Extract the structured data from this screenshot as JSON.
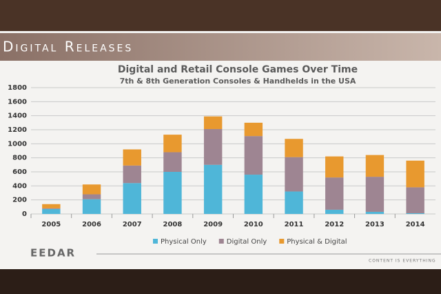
{
  "header": {
    "title": "Digital Releases"
  },
  "chart_data": {
    "type": "stacked_bar",
    "title": "Digital and Retail Console Games Over Time",
    "subtitle": "7th & 8th Generation Consoles & Handhelds in the USA",
    "categories": [
      "2005",
      "2006",
      "2007",
      "2008",
      "2009",
      "2010",
      "2011",
      "2012",
      "2013",
      "2014"
    ],
    "series": [
      {
        "name": "Physical Only",
        "color": "#4fb6d8",
        "values": [
          70,
          210,
          440,
          600,
          700,
          560,
          320,
          60,
          30,
          10
        ]
      },
      {
        "name": "Digital Only",
        "color": "#9e8592",
        "values": [
          10,
          70,
          250,
          280,
          510,
          550,
          490,
          460,
          500,
          370
        ]
      },
      {
        "name": "Physical & Digital",
        "color": "#e8992f",
        "values": [
          60,
          140,
          230,
          250,
          180,
          190,
          260,
          300,
          310,
          380
        ]
      }
    ],
    "ylim": [
      0,
      1800
    ],
    "yticks": [
      0,
      200,
      400,
      600,
      800,
      1000,
      1200,
      1400,
      1600,
      1800
    ],
    "grid": true,
    "legend": "bottom"
  },
  "footer": {
    "brand": "EEDAR",
    "tagline": "CONTENT IS EVERYTHING"
  }
}
